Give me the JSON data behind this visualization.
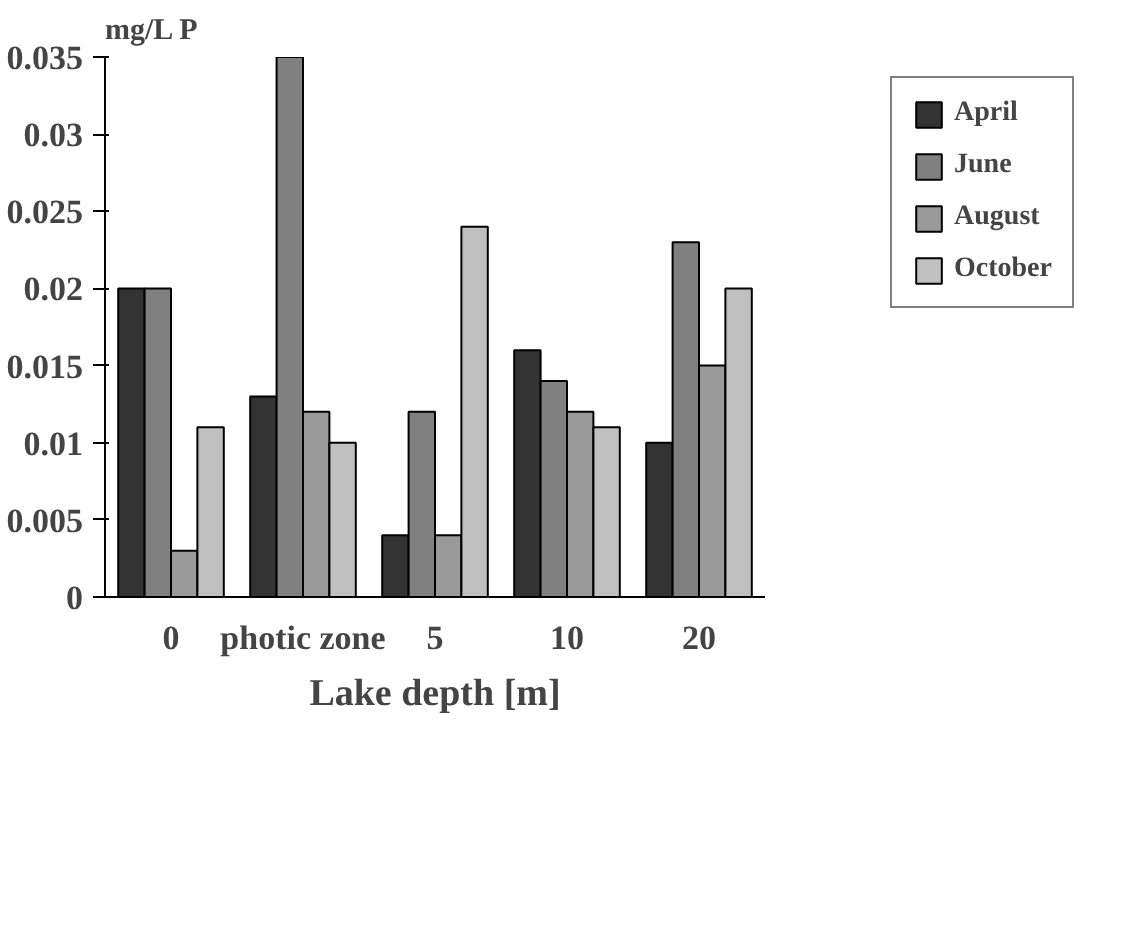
{
  "chart_data": {
    "type": "bar",
    "ylabel": "mg/L P",
    "xlabel": "Lake depth [m]",
    "categories": [
      "0",
      "photic zone",
      "5",
      "10",
      "20"
    ],
    "series": [
      {
        "name": "April",
        "color": "#333333",
        "values": [
          0.02,
          0.013,
          0.004,
          0.016,
          0.01
        ]
      },
      {
        "name": "June",
        "color": "#808080",
        "values": [
          0.02,
          0.035,
          0.012,
          0.014,
          0.023
        ]
      },
      {
        "name": "August",
        "color": "#999999",
        "values": [
          0.003,
          0.012,
          0.004,
          0.012,
          0.015
        ]
      },
      {
        "name": "October",
        "color": "#c0c0c0",
        "values": [
          0.011,
          0.01,
          0.024,
          0.011,
          0.02
        ]
      }
    ],
    "ylim": [
      0,
      0.035
    ],
    "yticks": [
      0,
      0.005,
      0.01,
      0.015,
      0.02,
      0.025,
      0.03,
      0.035
    ],
    "grid": false,
    "legend": "top right"
  }
}
